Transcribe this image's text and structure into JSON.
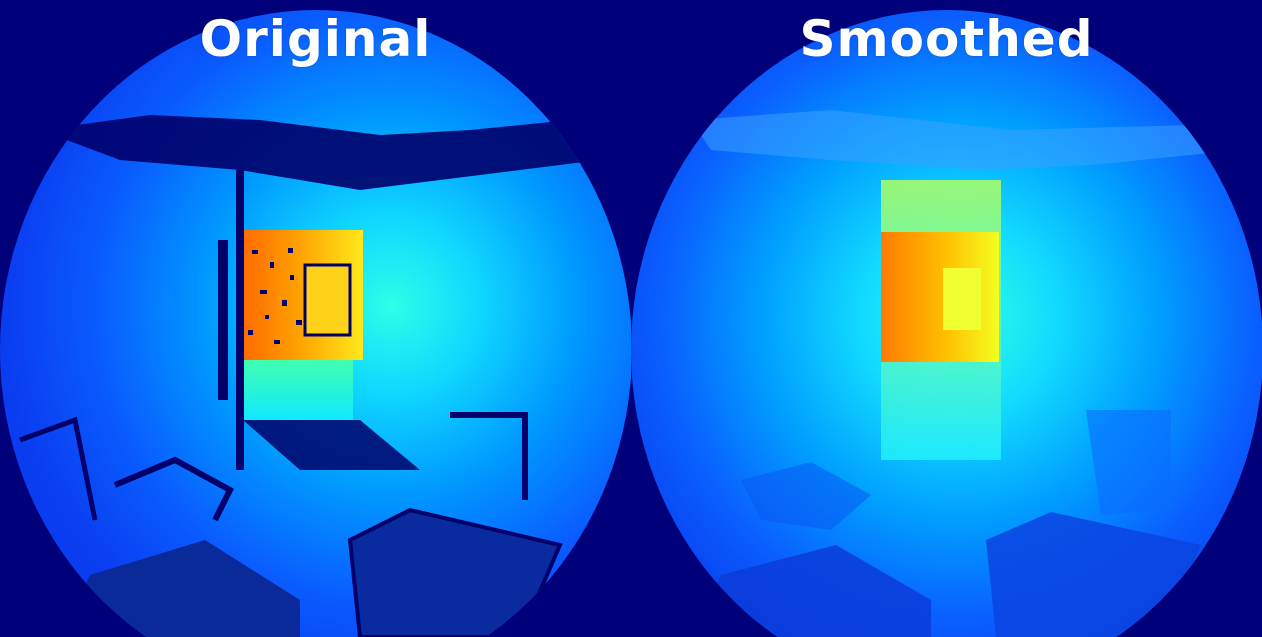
{
  "panels": {
    "left": {
      "title": "Original"
    },
    "right": {
      "title": "Smoothed"
    }
  },
  "colors": {
    "background": "#00007a",
    "far": "#0a3cff",
    "mid": "#00a8ff",
    "near": "#12e8ff",
    "wall_yellow": "#ffe81a",
    "wall_orange": "#ff7a00",
    "hole": "#00006a"
  }
}
